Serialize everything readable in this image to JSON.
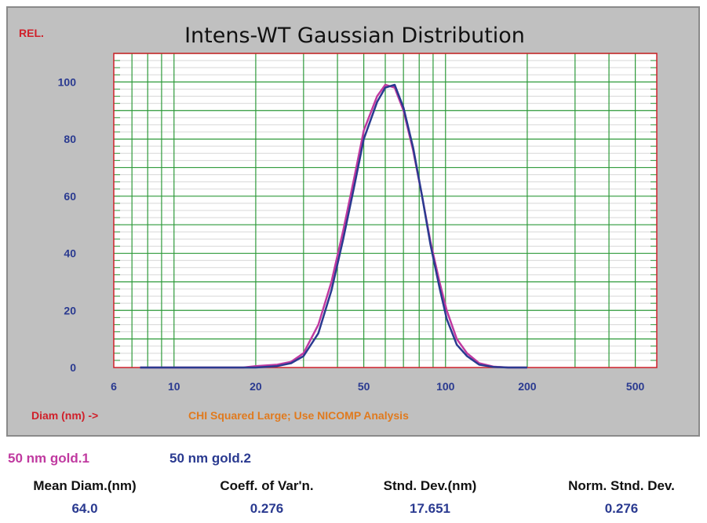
{
  "chart_data": {
    "type": "line",
    "title": "Intens-WT Gaussian Distribution",
    "ylabel": "REL.",
    "xlabel": "Diam (nm) ->",
    "annotation": "CHI Squared Large; Use NICOMP Analysis",
    "x_scale": "log",
    "xlim": [
      6,
      600
    ],
    "ylim": [
      0,
      110
    ],
    "x_ticks": [
      6,
      10,
      20,
      50,
      100,
      200,
      500
    ],
    "x_tick_labels": [
      "6",
      "10",
      "20",
      "50",
      "100",
      "200",
      "500"
    ],
    "y_ticks": [
      0,
      20,
      40,
      60,
      80,
      100
    ],
    "y_tick_labels": [
      "0",
      "20",
      "40",
      "60",
      "80",
      "100"
    ],
    "grid": true,
    "series": [
      {
        "name": "50 nm gold.1",
        "color": "#c03aa0",
        "x": [
          7.5,
          18,
          20,
          24,
          27,
          30,
          34,
          38,
          42,
          46,
          50,
          56,
          60,
          65,
          70,
          76,
          82,
          88,
          95,
          101,
          110,
          120,
          133,
          150,
          170,
          200
        ],
        "y": [
          0,
          0,
          0.5,
          1,
          2,
          5,
          15,
          30,
          48,
          66,
          83,
          95,
          99,
          98,
          90,
          76,
          60,
          44,
          30,
          20,
          10,
          5,
          1.5,
          0.3,
          0,
          0
        ]
      },
      {
        "name": "50 nm gold.2",
        "color": "#2a3a90",
        "x": [
          7.5,
          18,
          20,
          24,
          27,
          30,
          34,
          38,
          42,
          46,
          50,
          56,
          60,
          65,
          70,
          76,
          82,
          88,
          95,
          101,
          110,
          120,
          133,
          150,
          170,
          200
        ],
        "y": [
          0,
          0,
          0,
          0.5,
          1.5,
          4,
          12,
          27,
          45,
          63,
          80,
          93,
          98,
          99,
          91,
          77,
          60,
          43,
          28,
          17,
          8,
          4,
          1,
          0.2,
          0,
          0
        ]
      }
    ]
  },
  "legend": [
    {
      "label": "50 nm gold.1",
      "color": "#c03aa0"
    },
    {
      "label": "50 nm gold.2",
      "color": "#2a3a90"
    }
  ],
  "stats": [
    {
      "label": "Mean Diam.(nm)",
      "value": "64.0"
    },
    {
      "label": "Coeff. of Var'n.",
      "value": "0.276"
    },
    {
      "label": "Stnd. Dev.(nm)",
      "value": "17.651"
    },
    {
      "label": "Norm. Stnd. Dev.",
      "value": "0.276"
    }
  ]
}
